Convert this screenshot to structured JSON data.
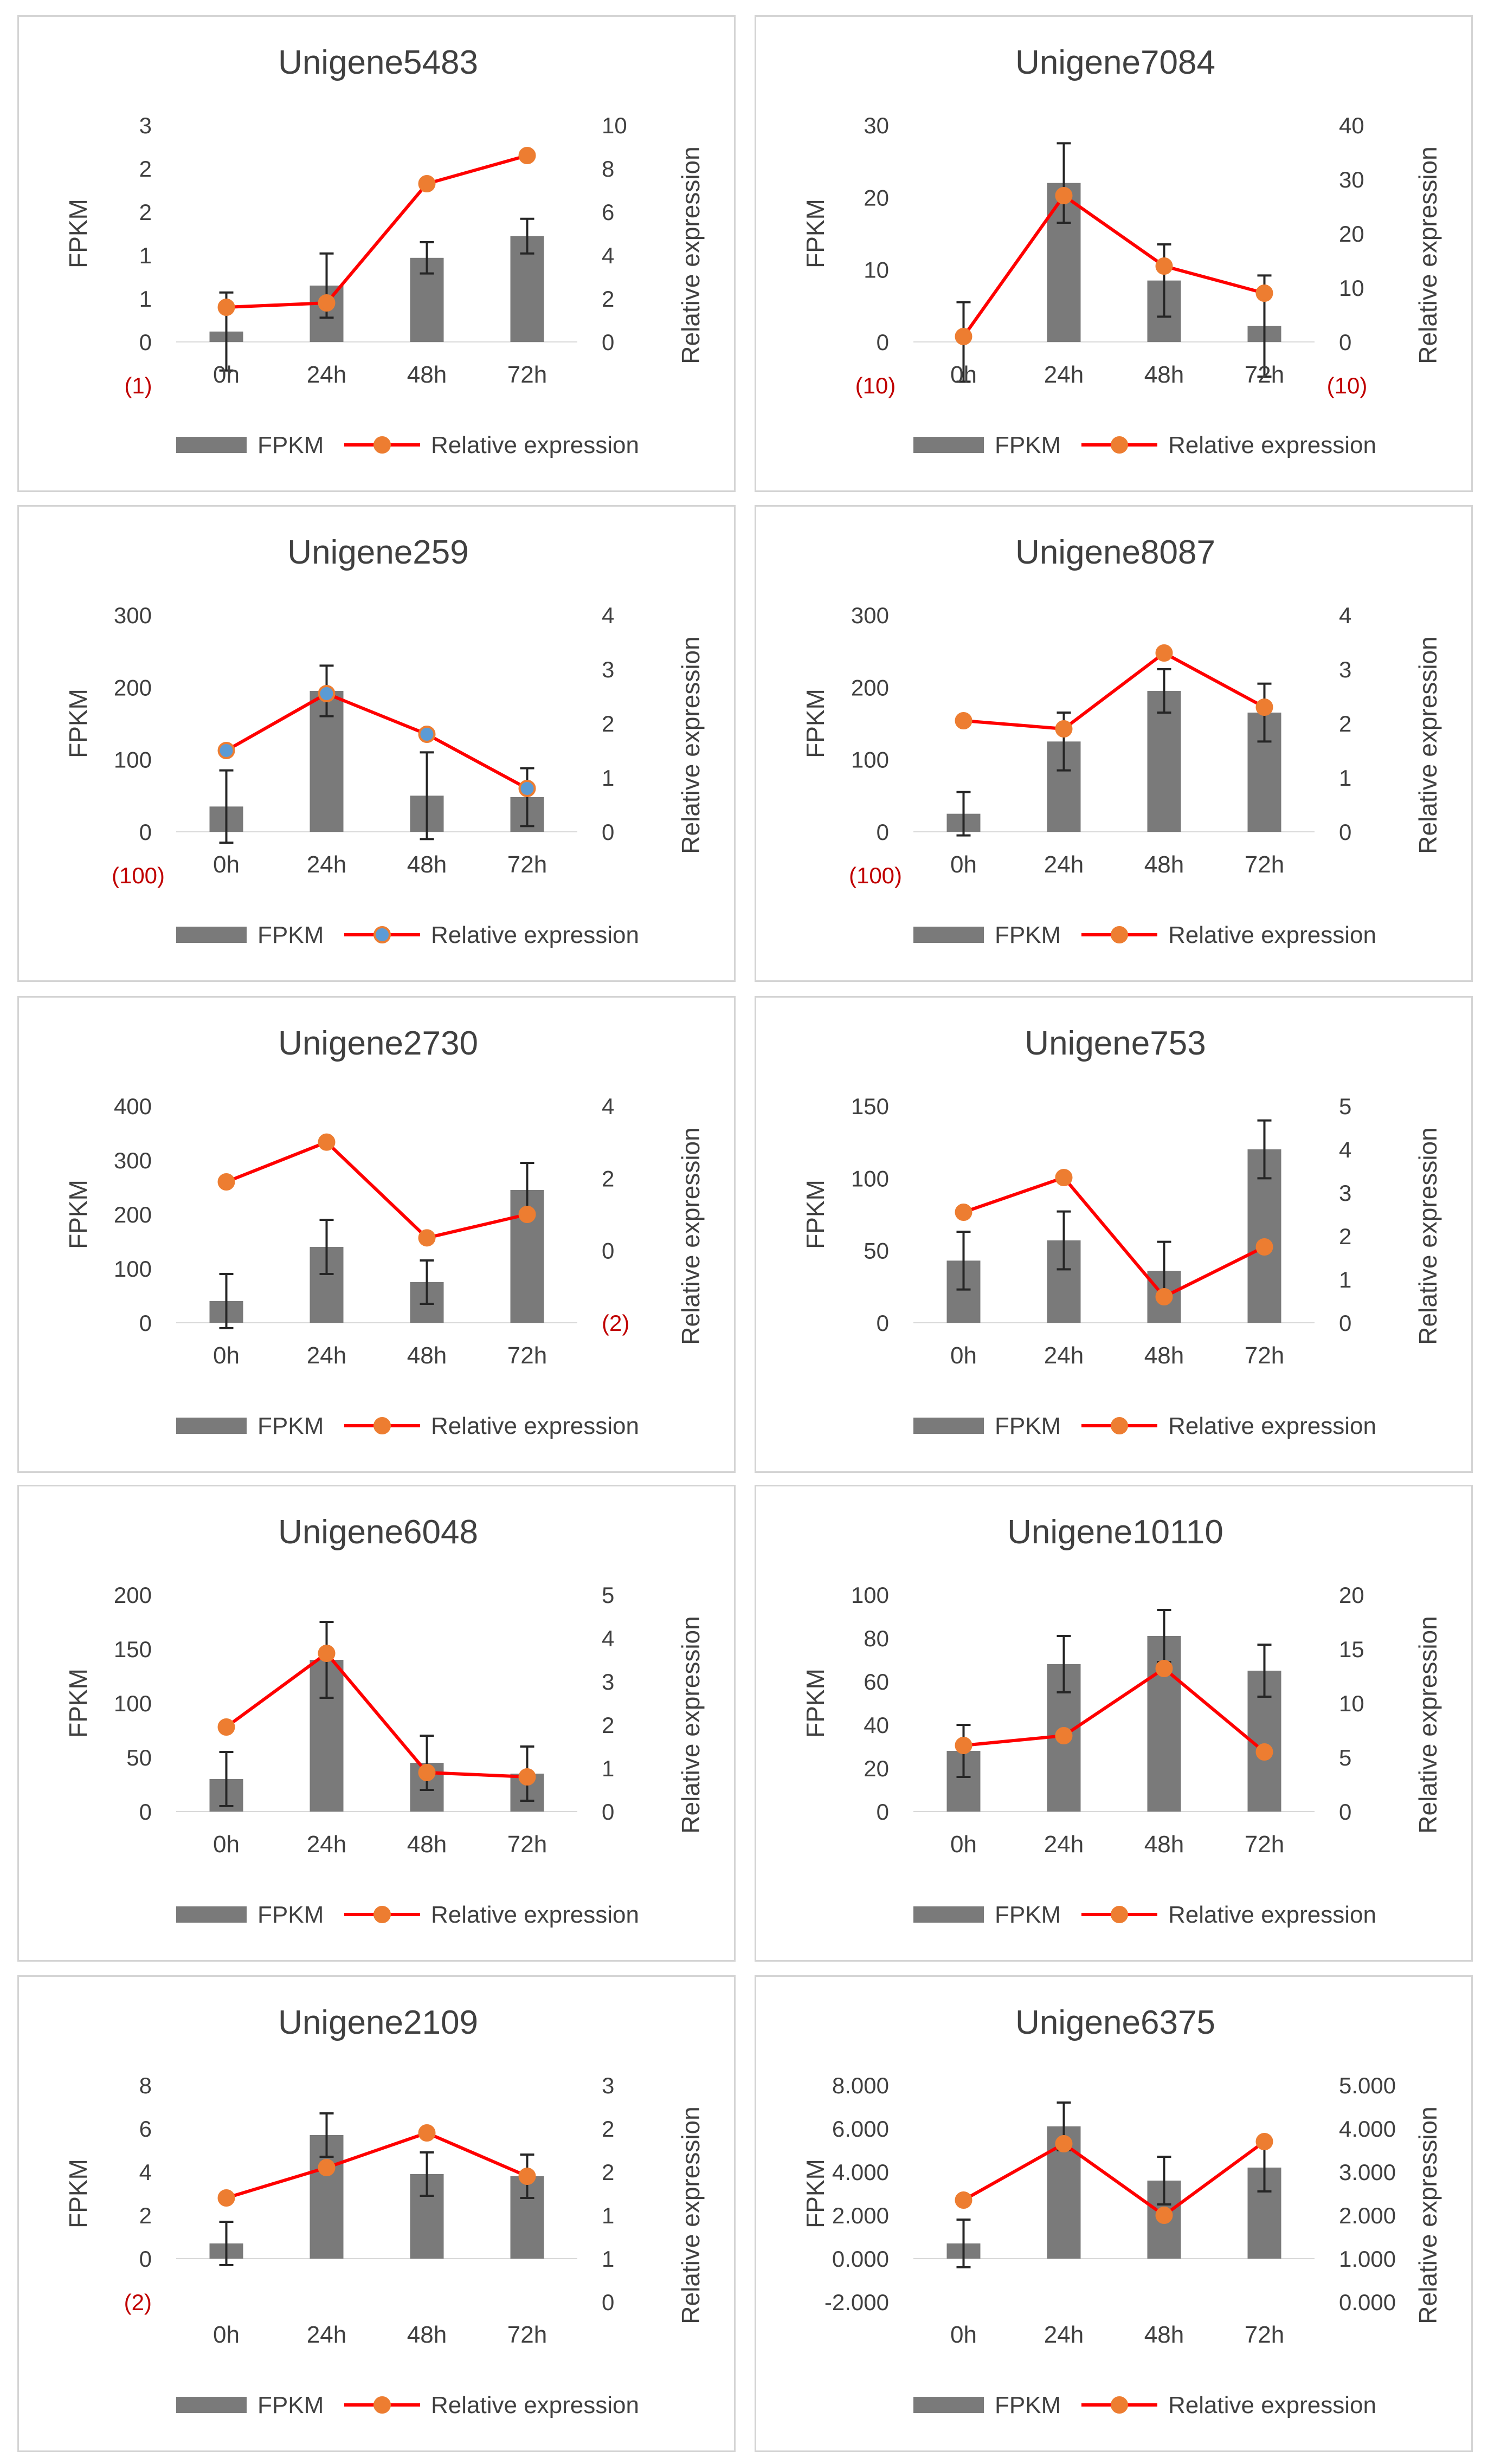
{
  "legend": {
    "bar_label": "FPKM",
    "line_label": "Relative expression"
  },
  "colors": {
    "bar": "#7a7a7a",
    "line": "#ff0000",
    "marker": "#ed7d31",
    "marker_alt": "#5b9bd5",
    "axis_text": "#404040",
    "note": "#c00000",
    "frame": "#d4d4d4"
  },
  "chart_data": [
    {
      "type": "bar-line-combo",
      "title": "Unigene5483",
      "categories": [
        "0h",
        "24h",
        "48h",
        "72h"
      ],
      "ylabel": "FPKM",
      "y2label": "Relative expression",
      "y_ticks": [
        "0",
        "1",
        "1",
        "2",
        "2",
        "3"
      ],
      "y_range": [
        0,
        2.5
      ],
      "y2_ticks": [
        "0",
        "2",
        "4",
        "6",
        "8",
        "10"
      ],
      "y2_range": [
        0,
        10
      ],
      "series": [
        {
          "name": "FPKM",
          "kind": "bar",
          "values": [
            0.12,
            0.65,
            0.97,
            1.22
          ],
          "errors": [
            0.45,
            0.37,
            0.18,
            0.2
          ]
        },
        {
          "name": "Relative expression",
          "kind": "line",
          "values": [
            1.6,
            1.8,
            7.3,
            8.6
          ]
        }
      ],
      "notes": [
        {
          "text": "(1)",
          "position": "below-left-axis"
        }
      ],
      "marker_color": "orange"
    },
    {
      "type": "bar-line-combo",
      "title": "Unigene7084",
      "categories": [
        "0h",
        "24h",
        "48h",
        "72h"
      ],
      "ylabel": "FPKM",
      "y2label": "Relative expression",
      "y_ticks": [
        "0",
        "10",
        "20",
        "30"
      ],
      "y_range": [
        0,
        30
      ],
      "y2_ticks": [
        "0",
        "10",
        "20",
        "30",
        "40"
      ],
      "y2_range": [
        0,
        40
      ],
      "series": [
        {
          "name": "FPKM",
          "kind": "bar",
          "values": [
            0,
            22,
            8.5,
            2.2
          ],
          "errors": [
            5.5,
            5.5,
            5,
            7
          ]
        },
        {
          "name": "Relative expression",
          "kind": "line",
          "values": [
            1,
            27,
            14,
            9
          ]
        }
      ],
      "notes": [
        {
          "text": "(10)",
          "position": "below-left-axis"
        },
        {
          "text": "(10)",
          "position": "below-right-axis"
        }
      ],
      "marker_color": "orange"
    },
    {
      "type": "bar-line-combo",
      "title": "Unigene259",
      "categories": [
        "0h",
        "24h",
        "48h",
        "72h"
      ],
      "ylabel": "FPKM",
      "y2label": "Relative expression",
      "y_ticks": [
        "0",
        "100",
        "200",
        "300"
      ],
      "y_range": [
        0,
        300
      ],
      "y2_ticks": [
        "0",
        "1",
        "2",
        "3",
        "4"
      ],
      "y2_range": [
        0,
        4
      ],
      "series": [
        {
          "name": "FPKM",
          "kind": "bar",
          "values": [
            35,
            195,
            50,
            48
          ],
          "errors": [
            50,
            35,
            60,
            40
          ]
        },
        {
          "name": "Relative expression",
          "kind": "line",
          "values": [
            1.5,
            2.55,
            1.8,
            0.8
          ]
        }
      ],
      "notes": [
        {
          "text": "(100)",
          "position": "below-left-axis"
        }
      ],
      "marker_color": "blue"
    },
    {
      "type": "bar-line-combo",
      "title": "Unigene8087",
      "categories": [
        "0h",
        "24h",
        "48h",
        "72h"
      ],
      "ylabel": "FPKM",
      "y2label": "Relative expression",
      "y_ticks": [
        "0",
        "100",
        "200",
        "300"
      ],
      "y_range": [
        0,
        300
      ],
      "y2_ticks": [
        "0",
        "1",
        "2",
        "3",
        "4"
      ],
      "y2_range": [
        0,
        4
      ],
      "series": [
        {
          "name": "FPKM",
          "kind": "bar",
          "values": [
            25,
            125,
            195,
            165
          ],
          "errors": [
            30,
            40,
            30,
            40
          ]
        },
        {
          "name": "Relative expression",
          "kind": "line",
          "values": [
            2.05,
            1.9,
            3.3,
            2.3
          ]
        }
      ],
      "notes": [
        {
          "text": "(100)",
          "position": "below-left-axis"
        }
      ],
      "marker_color": "orange"
    },
    {
      "type": "bar-line-combo",
      "title": "Unigene2730",
      "categories": [
        "0h",
        "24h",
        "48h",
        "72h"
      ],
      "ylabel": "FPKM",
      "y2label": "Relative expression",
      "y_ticks": [
        "0",
        "100",
        "200",
        "300",
        "400"
      ],
      "y_range": [
        0,
        400
      ],
      "y2_ticks": [
        "(2)",
        "0",
        "2",
        "4"
      ],
      "y2_range": [
        -2,
        4
      ],
      "series": [
        {
          "name": "FPKM",
          "kind": "bar",
          "values": [
            40,
            140,
            75,
            245
          ],
          "errors": [
            50,
            50,
            40,
            50
          ]
        },
        {
          "name": "Relative expression",
          "kind": "line",
          "values": [
            1.9,
            3,
            0.35,
            1
          ]
        }
      ],
      "notes": [],
      "marker_color": "orange"
    },
    {
      "type": "bar-line-combo",
      "title": "Unigene753",
      "categories": [
        "0h",
        "24h",
        "48h",
        "72h"
      ],
      "ylabel": "FPKM",
      "y2label": "Relative expression",
      "y_ticks": [
        "0",
        "50",
        "100",
        "150"
      ],
      "y_range": [
        0,
        150
      ],
      "y2_ticks": [
        "0",
        "1",
        "2",
        "3",
        "4",
        "5"
      ],
      "y2_range": [
        0,
        5
      ],
      "series": [
        {
          "name": "FPKM",
          "kind": "bar",
          "values": [
            43,
            57,
            36,
            120
          ],
          "errors": [
            20,
            20,
            20,
            20
          ]
        },
        {
          "name": "Relative expression",
          "kind": "line",
          "values": [
            2.55,
            3.35,
            0.6,
            1.75
          ]
        }
      ],
      "notes": [],
      "marker_color": "orange"
    },
    {
      "type": "bar-line-combo",
      "title": "Unigene6048",
      "categories": [
        "0h",
        "24h",
        "48h",
        "72h"
      ],
      "ylabel": "FPKM",
      "y2label": "Relative expression",
      "y_ticks": [
        "0",
        "50",
        "100",
        "150",
        "200"
      ],
      "y_range": [
        0,
        200
      ],
      "y2_ticks": [
        "0",
        "1",
        "2",
        "3",
        "4",
        "5"
      ],
      "y2_range": [
        0,
        5
      ],
      "series": [
        {
          "name": "FPKM",
          "kind": "bar",
          "values": [
            30,
            140,
            45,
            35
          ],
          "errors": [
            25,
            35,
            25,
            25
          ]
        },
        {
          "name": "Relative expression",
          "kind": "line",
          "values": [
            1.95,
            3.65,
            0.9,
            0.8
          ]
        }
      ],
      "notes": [],
      "marker_color": "orange"
    },
    {
      "type": "bar-line-combo",
      "title": "Unigene10110",
      "categories": [
        "0h",
        "24h",
        "48h",
        "72h"
      ],
      "ylabel": "FPKM",
      "y2label": "Relative expression",
      "y_ticks": [
        "0",
        "20",
        "40",
        "60",
        "80",
        "100"
      ],
      "y_range": [
        0,
        100
      ],
      "y2_ticks": [
        "0",
        "5",
        "10",
        "15",
        "20"
      ],
      "y2_range": [
        0,
        20
      ],
      "series": [
        {
          "name": "FPKM",
          "kind": "bar",
          "values": [
            28,
            68,
            81,
            65
          ],
          "errors": [
            12,
            13,
            12,
            12
          ]
        },
        {
          "name": "Relative expression",
          "kind": "line",
          "values": [
            6.1,
            7,
            13.2,
            5.5
          ]
        }
      ],
      "notes": [],
      "marker_color": "orange"
    },
    {
      "type": "bar-line-combo",
      "title": "Unigene2109",
      "categories": [
        "0h",
        "24h",
        "48h",
        "72h"
      ],
      "ylabel": "FPKM",
      "y2label": "Relative expression",
      "y_ticks": [
        "(2)",
        "0",
        "2",
        "4",
        "6",
        "8"
      ],
      "y_range": [
        -2,
        8
      ],
      "y2_ticks": [
        "0",
        "1",
        "1",
        "2",
        "2",
        "3"
      ],
      "y2_range": [
        0,
        2.5
      ],
      "series": [
        {
          "name": "FPKM",
          "kind": "bar",
          "values": [
            0.7,
            5.7,
            3.9,
            3.8
          ],
          "errors": [
            1,
            1,
            1,
            1
          ]
        },
        {
          "name": "Relative expression",
          "kind": "line",
          "values": [
            1.2,
            1.55,
            1.95,
            1.45
          ]
        }
      ],
      "notes": [],
      "marker_color": "orange"
    },
    {
      "type": "bar-line-combo",
      "title": "Unigene6375",
      "categories": [
        "0h",
        "24h",
        "48h",
        "72h"
      ],
      "ylabel": "FPKM",
      "y2label": "Relative expression",
      "y_ticks": [
        "-2.000",
        "0.000",
        "2.000",
        "4.000",
        "6.000",
        "8.000"
      ],
      "y_range": [
        -2,
        8
      ],
      "y2_ticks": [
        "0.000",
        "1.000",
        "2.000",
        "3.000",
        "4.000",
        "5.000"
      ],
      "y2_range": [
        0,
        5
      ],
      "series": [
        {
          "name": "FPKM",
          "kind": "bar",
          "values": [
            0.7,
            6.1,
            3.6,
            4.2
          ],
          "errors": [
            1.1,
            1.1,
            1.1,
            1.1
          ]
        },
        {
          "name": "Relative expression",
          "kind": "line",
          "values": [
            2.35,
            3.65,
            2,
            3.7
          ]
        }
      ],
      "notes": [],
      "marker_color": "orange"
    }
  ]
}
